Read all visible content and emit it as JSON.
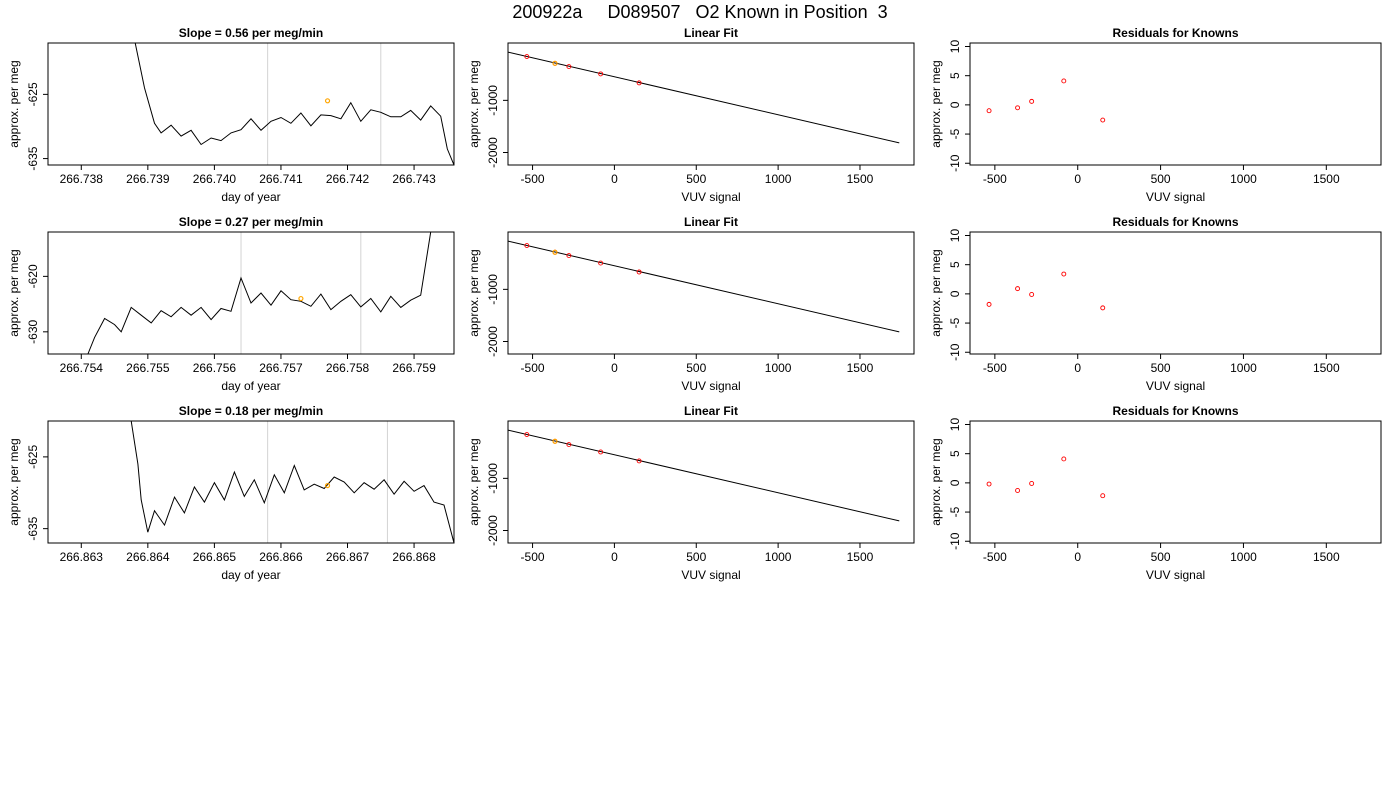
{
  "title": "200922a     D089507   O2 Known in Position  3",
  "colors": {
    "trace": "#000000",
    "vertical_marker": "#d3d3d3",
    "known_point": "#ffa500",
    "residual_point": "#ff0000",
    "fit_point": "#ff0000",
    "fit_line": "#000000"
  },
  "chart_data": [
    {
      "id": "trace-1",
      "type": "line",
      "title": "Slope =  0.56  per meg/min",
      "xlabel": "day of year",
      "ylabel": "approx. per meg",
      "xlim": [
        266.7375,
        266.7436
      ],
      "ylim": [
        -636,
        -617
      ],
      "xticks": [
        266.738,
        266.739,
        266.74,
        266.741,
        266.742,
        266.743
      ],
      "xtick_labels": [
        "266.738",
        "266.739",
        "266.740",
        "266.741",
        "266.742",
        "266.743"
      ],
      "yticks": [
        -635,
        -625
      ],
      "ytick_labels": [
        "-635",
        "-625"
      ],
      "vlines": [
        266.7408,
        266.7425
      ],
      "known_point": [
        266.7417,
        -626.0
      ],
      "series": [
        {
          "values": [
            [
              266.73881,
              -617
            ],
            [
              266.73895,
              -624
            ],
            [
              266.7391,
              -629.5
            ],
            [
              266.7392,
              -631
            ],
            [
              266.73935,
              -629.8
            ],
            [
              266.7395,
              -631.5
            ],
            [
              266.73965,
              -630.6
            ],
            [
              266.7398,
              -632.8
            ],
            [
              266.73995,
              -631.8
            ],
            [
              266.7401,
              -632.2
            ],
            [
              266.74025,
              -631
            ],
            [
              266.7404,
              -630.5
            ],
            [
              266.74055,
              -628.8
            ],
            [
              266.7407,
              -630.6
            ],
            [
              266.74085,
              -629.2
            ],
            [
              266.741,
              -628.6
            ],
            [
              266.74115,
              -629.5
            ],
            [
              266.7413,
              -627.9
            ],
            [
              266.74145,
              -629.9
            ],
            [
              266.7416,
              -628.2
            ],
            [
              266.74175,
              -628.3
            ],
            [
              266.7419,
              -628.8
            ],
            [
              266.74205,
              -626.3
            ],
            [
              266.7422,
              -629.2
            ],
            [
              266.74235,
              -627.4
            ],
            [
              266.7425,
              -627.8
            ],
            [
              266.74265,
              -628.5
            ],
            [
              266.7428,
              -628.5
            ],
            [
              266.74295,
              -627.5
            ],
            [
              266.7431,
              -629
            ],
            [
              266.74325,
              -626.8
            ],
            [
              266.7434,
              -628.4
            ],
            [
              266.7435,
              -633.5
            ],
            [
              266.7436,
              -636
            ]
          ]
        }
      ]
    },
    {
      "id": "fit-1",
      "type": "scatter",
      "title": "Linear Fit",
      "xlabel": "VUV signal",
      "ylabel": "approx. per meg",
      "xlim": [
        -650,
        1830
      ],
      "ylim": [
        -2240,
        100
      ],
      "xticks": [
        -500,
        0,
        500,
        1000,
        1500
      ],
      "xtick_labels": [
        "-500",
        "0",
        "500",
        "1000",
        "1500"
      ],
      "yticks": [
        -2000,
        -1000
      ],
      "ytick_labels": [
        "-2000",
        "-1000"
      ],
      "points": [
        [
          -535,
          -160
        ],
        [
          -363,
          -290
        ],
        [
          -278,
          -352
        ],
        [
          -84,
          -493
        ],
        [
          151,
          -665
        ]
      ],
      "known_point": [
        -363,
        -290
      ],
      "fit_line": [
        [
          -650,
          -74
        ],
        [
          1740,
          -1816
        ]
      ]
    },
    {
      "id": "resid-1",
      "type": "scatter",
      "title": "Residuals for Knowns",
      "xlabel": "VUV signal",
      "ylabel": "approx. per meg",
      "xlim": [
        -650,
        1830
      ],
      "ylim": [
        -10.3,
        10.6
      ],
      "xticks": [
        -500,
        0,
        500,
        1000,
        1500
      ],
      "xtick_labels": [
        "-500",
        "0",
        "500",
        "1000",
        "1500"
      ],
      "yticks": [
        -10,
        -5,
        0,
        5,
        10
      ],
      "ytick_labels": [
        "-10",
        "-5",
        "0",
        "5",
        "10"
      ],
      "points": [
        [
          -535,
          -1.0
        ],
        [
          -363,
          -0.5
        ],
        [
          -278,
          0.6
        ],
        [
          -84,
          4.1
        ],
        [
          151,
          -2.6
        ]
      ]
    },
    {
      "id": "trace-2",
      "type": "line",
      "title": "Slope =  0.27  per meg/min",
      "xlabel": "day of year",
      "ylabel": "approx. per meg",
      "xlim": [
        266.7535,
        266.7596
      ],
      "ylim": [
        -634,
        -612
      ],
      "xticks": [
        266.754,
        266.755,
        266.756,
        266.757,
        266.758,
        266.759
      ],
      "xtick_labels": [
        "266.754",
        "266.755",
        "266.756",
        "266.757",
        "266.758",
        "266.759"
      ],
      "yticks": [
        -630,
        -620
      ],
      "ytick_labels": [
        "-630",
        "-620"
      ],
      "vlines": [
        266.7564,
        266.7582
      ],
      "known_point": [
        266.7573,
        -624.0
      ],
      "series": [
        {
          "values": [
            [
              266.7541,
              -634
            ],
            [
              266.7542,
              -631
            ],
            [
              266.75435,
              -627.6
            ],
            [
              266.7545,
              -628.7
            ],
            [
              266.7546,
              -630
            ],
            [
              266.75475,
              -625.6
            ],
            [
              266.7549,
              -627
            ],
            [
              266.75505,
              -628.4
            ],
            [
              266.7552,
              -626.2
            ],
            [
              266.75535,
              -627.3
            ],
            [
              266.7555,
              -625.6
            ],
            [
              266.75565,
              -627
            ],
            [
              266.7558,
              -625.6
            ],
            [
              266.75595,
              -627.8
            ],
            [
              266.7561,
              -625.8
            ],
            [
              266.75625,
              -626.3
            ],
            [
              266.7564,
              -620.3
            ],
            [
              266.75655,
              -624.8
            ],
            [
              266.7567,
              -623
            ],
            [
              266.75685,
              -625.2
            ],
            [
              266.757,
              -622.6
            ],
            [
              266.75715,
              -624.2
            ],
            [
              266.7573,
              -624.5
            ],
            [
              266.75745,
              -625.4
            ],
            [
              266.7576,
              -623.2
            ],
            [
              266.75775,
              -626
            ],
            [
              266.7579,
              -624.5
            ],
            [
              266.75805,
              -623.3
            ],
            [
              266.7582,
              -625.5
            ],
            [
              266.75835,
              -624
            ],
            [
              266.7585,
              -626.4
            ],
            [
              266.75865,
              -623.6
            ],
            [
              266.7588,
              -625.6
            ],
            [
              266.75895,
              -624.3
            ],
            [
              266.7591,
              -623.4
            ],
            [
              266.75925,
              -612
            ]
          ]
        }
      ]
    },
    {
      "id": "fit-2",
      "type": "scatter",
      "title": "Linear Fit",
      "xlabel": "VUV signal",
      "ylabel": "approx. per meg",
      "xlim": [
        -650,
        1830
      ],
      "ylim": [
        -2240,
        100
      ],
      "xticks": [
        -500,
        0,
        500,
        1000,
        1500
      ],
      "xtick_labels": [
        "-500",
        "0",
        "500",
        "1000",
        "1500"
      ],
      "yticks": [
        -2000,
        -1000
      ],
      "ytick_labels": [
        "-2000",
        "-1000"
      ],
      "points": [
        [
          -535,
          -160
        ],
        [
          -363,
          -288
        ],
        [
          -278,
          -352
        ],
        [
          -84,
          -496
        ],
        [
          151,
          -667
        ]
      ],
      "known_point": [
        -363,
        -288
      ],
      "fit_line": [
        [
          -650,
          -74
        ],
        [
          1740,
          -1816
        ]
      ]
    },
    {
      "id": "resid-2",
      "type": "scatter",
      "title": "Residuals for Knowns",
      "xlabel": "VUV signal",
      "ylabel": "approx. per meg",
      "xlim": [
        -650,
        1830
      ],
      "ylim": [
        -10.3,
        10.6
      ],
      "xticks": [
        -500,
        0,
        500,
        1000,
        1500
      ],
      "xtick_labels": [
        "-500",
        "0",
        "500",
        "1000",
        "1500"
      ],
      "yticks": [
        -10,
        -5,
        0,
        5,
        10
      ],
      "ytick_labels": [
        "-10",
        "-5",
        "0",
        "5",
        "10"
      ],
      "points": [
        [
          -535,
          -1.8
        ],
        [
          -363,
          0.9
        ],
        [
          -278,
          -0.1
        ],
        [
          -84,
          3.4
        ],
        [
          151,
          -2.4
        ]
      ]
    },
    {
      "id": "trace-3",
      "type": "line",
      "title": "Slope =  0.18  per meg/min",
      "xlabel": "day of year",
      "ylabel": "approx. per meg",
      "xlim": [
        266.8625,
        266.8686
      ],
      "ylim": [
        -637,
        -620
      ],
      "xticks": [
        266.863,
        266.864,
        266.865,
        266.866,
        266.867,
        266.868
      ],
      "xtick_labels": [
        "266.863",
        "266.864",
        "266.865",
        "266.866",
        "266.867",
        "266.868"
      ],
      "yticks": [
        -635,
        -625
      ],
      "ytick_labels": [
        "-635",
        "-625"
      ],
      "vlines": [
        266.8658,
        266.8676
      ],
      "known_point": [
        266.8667,
        -629.0
      ],
      "series": [
        {
          "values": [
            [
              266.86375,
              -620
            ],
            [
              266.86385,
              -626
            ],
            [
              266.8639,
              -631
            ],
            [
              266.864,
              -635.5
            ],
            [
              266.8641,
              -632.5
            ],
            [
              266.86425,
              -634.5
            ],
            [
              266.8644,
              -630.6
            ],
            [
              266.86455,
              -632.8
            ],
            [
              266.8647,
              -629.2
            ],
            [
              266.86485,
              -631.3
            ],
            [
              266.865,
              -628.6
            ],
            [
              266.86515,
              -631
            ],
            [
              266.8653,
              -627.1
            ],
            [
              266.86545,
              -630.5
            ],
            [
              266.8656,
              -628.2
            ],
            [
              266.86575,
              -631.4
            ],
            [
              266.8659,
              -627.5
            ],
            [
              266.86605,
              -630
            ],
            [
              266.8662,
              -626.2
            ],
            [
              266.86635,
              -629.6
            ],
            [
              266.8665,
              -628.8
            ],
            [
              266.86665,
              -629.4
            ],
            [
              266.8668,
              -627.8
            ],
            [
              266.86695,
              -628.5
            ],
            [
              266.8671,
              -630
            ],
            [
              266.86725,
              -628.6
            ],
            [
              266.8674,
              -629.5
            ],
            [
              266.86755,
              -628.2
            ],
            [
              266.8677,
              -630.2
            ],
            [
              266.86785,
              -628.4
            ],
            [
              266.868,
              -629.8
            ],
            [
              266.86815,
              -629
            ],
            [
              266.8683,
              -631.3
            ],
            [
              266.86845,
              -631.7
            ],
            [
              266.8686,
              -637
            ]
          ]
        }
      ]
    },
    {
      "id": "fit-3",
      "type": "scatter",
      "title": "Linear Fit",
      "xlabel": "VUV signal",
      "ylabel": "approx. per meg",
      "xlim": [
        -650,
        1830
      ],
      "ylim": [
        -2240,
        100
      ],
      "xticks": [
        -500,
        0,
        500,
        1000,
        1500
      ],
      "xtick_labels": [
        "-500",
        "0",
        "500",
        "1000",
        "1500"
      ],
      "yticks": [
        -2000,
        -1000
      ],
      "ytick_labels": [
        "-2000",
        "-1000"
      ],
      "points": [
        [
          -535,
          -160
        ],
        [
          -363,
          -289
        ],
        [
          -278,
          -352
        ],
        [
          -84,
          -494
        ],
        [
          151,
          -666
        ]
      ],
      "known_point": [
        -363,
        -289
      ],
      "fit_line": [
        [
          -650,
          -74
        ],
        [
          1740,
          -1816
        ]
      ]
    },
    {
      "id": "resid-3",
      "type": "scatter",
      "title": "Residuals for Knowns",
      "xlabel": "VUV signal",
      "ylabel": "approx. per meg",
      "xlim": [
        -650,
        1830
      ],
      "ylim": [
        -10.3,
        10.6
      ],
      "xticks": [
        -500,
        0,
        500,
        1000,
        1500
      ],
      "xtick_labels": [
        "-500",
        "0",
        "500",
        "1000",
        "1500"
      ],
      "yticks": [
        -10,
        -5,
        0,
        5,
        10
      ],
      "ytick_labels": [
        "-10",
        "-5",
        "0",
        "5",
        "10"
      ],
      "points": [
        [
          -535,
          -0.2
        ],
        [
          -363,
          -1.3
        ],
        [
          -278,
          -0.1
        ],
        [
          -84,
          4.1
        ],
        [
          151,
          -2.2
        ]
      ]
    }
  ]
}
